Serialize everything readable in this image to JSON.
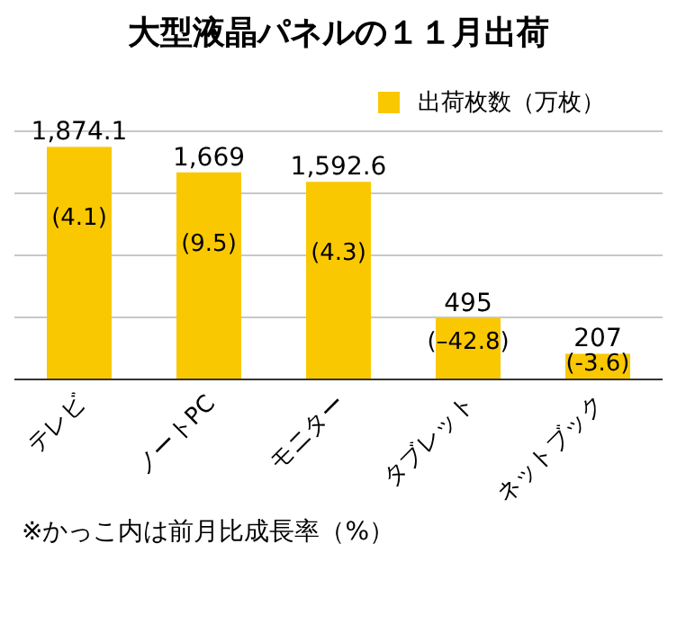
{
  "chart_data": {
    "type": "bar",
    "title": "大型液晶パネルの１１月出荷",
    "categories": [
      "テレビ",
      "ノートPC",
      "モニター",
      "タブレット",
      "ネットブック"
    ],
    "series": [
      {
        "name": "出荷枚数（万枚）",
        "color": "#fac800",
        "values": [
          1874.1,
          1669,
          1592.6,
          495,
          207
        ],
        "value_labels": [
          "1,874.1",
          "1,669",
          "1,592.6",
          "495",
          "207"
        ]
      }
    ],
    "ylim": [
      0,
      2000
    ],
    "yticks": [
      {
        "value": 0,
        "label": null
      },
      {
        "value": 500,
        "label": null
      },
      {
        "value": 1000,
        "label": null
      },
      {
        "value": 1500,
        "label": null
      },
      {
        "value": 2000,
        "label": null
      }
    ],
    "grid": "y",
    "legend": "top right",
    "tick_labels": "x",
    "annotations": [
      {
        "text": "(4.1)",
        "x": "テレビ",
        "y": 1874.1
      },
      {
        "text": "(9.5)",
        "x": "ノートPC",
        "y": 1669
      },
      {
        "text": "(4.3)",
        "x": "モニター",
        "y": 1592.6
      },
      {
        "text": "(–42.8)",
        "x": "タブレット",
        "y": 495
      },
      {
        "text": "(-3.6)",
        "x": "ネットブック",
        "y": 207
      },
      "※かっこ内は前月比成長率（%）"
    ]
  }
}
